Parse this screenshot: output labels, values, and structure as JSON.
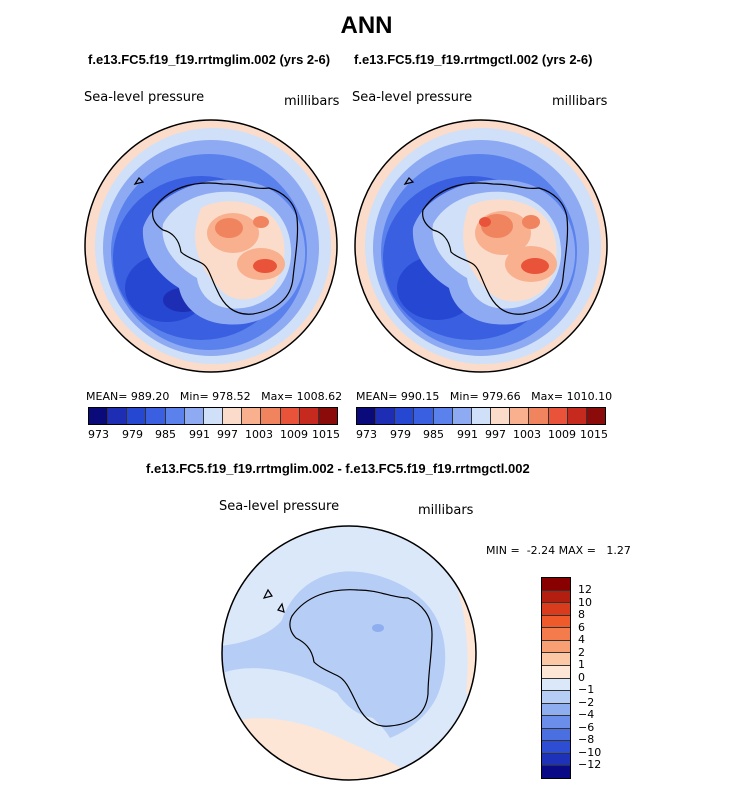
{
  "title": "ANN",
  "colors": {
    "scale13": [
      "#0a0a7a",
      "#1d2db4",
      "#2647d2",
      "#3a5fe0",
      "#5b82ec",
      "#8eaaf2",
      "#cfe0f8",
      "#fbdccb",
      "#f8b08f",
      "#f0845f",
      "#e8533a",
      "#c62a1e",
      "#8b0b0b"
    ],
    "diff": [
      "#880000",
      "#b21e0f",
      "#d83c1c",
      "#ee5a2a",
      "#f47c4c",
      "#f89f74",
      "#fbc7a5",
      "#fde6d6",
      "#dbe8fa",
      "#b6cdf5",
      "#8eaef0",
      "#6a8ee9",
      "#4a6fe0",
      "#2d4ed3",
      "#1d32b8",
      "#0a0a86"
    ]
  },
  "chart_data": [
    {
      "type": "heatmap",
      "name": "control-case-map",
      "case": "f.e13.FC5.f19_f19.rrtmglim.002 (yrs 2-6)",
      "variable": "Sea-level pressure",
      "units": "millibars",
      "projection": "south polar stereographic",
      "stats": {
        "mean_label": "MEAN=",
        "mean": "989.20",
        "min_label": "Min=",
        "min": "978.52",
        "max_label": "Max=",
        "max": "1008.62"
      },
      "colorbar_ticks": [
        "973",
        "979",
        "985",
        "991",
        "997",
        "1003",
        "1009",
        "1015"
      ]
    },
    {
      "type": "heatmap",
      "name": "test-case-map",
      "case": "f.e13.FC5.f19_f19.rrtmgctl.002 (yrs 2-6)",
      "variable": "Sea-level pressure",
      "units": "millibars",
      "projection": "south polar stereographic",
      "stats": {
        "mean_label": "MEAN=",
        "mean": "990.15",
        "min_label": "Min=",
        "min": "979.66",
        "max_label": "Max=",
        "max": "1010.10"
      },
      "colorbar_ticks": [
        "973",
        "979",
        "985",
        "991",
        "997",
        "1003",
        "1009",
        "1015"
      ]
    },
    {
      "type": "heatmap",
      "name": "difference-map",
      "case": "f.e13.FC5.f19_f19.rrtmglim.002 - f.e13.FC5.f19_f19.rrtmgctl.002",
      "variable": "Sea-level pressure",
      "units": "millibars",
      "projection": "south polar stereographic",
      "stats": {
        "min_label": "MIN =",
        "min": "-2.24",
        "max_label": "MAX =",
        "max": "1.27"
      },
      "colorbar_ticks": [
        "12",
        "10",
        "8",
        "6",
        "4",
        "2",
        "1",
        "0",
        "−1",
        "−2",
        "−4",
        "−6",
        "−8",
        "−10",
        "−12"
      ]
    }
  ]
}
